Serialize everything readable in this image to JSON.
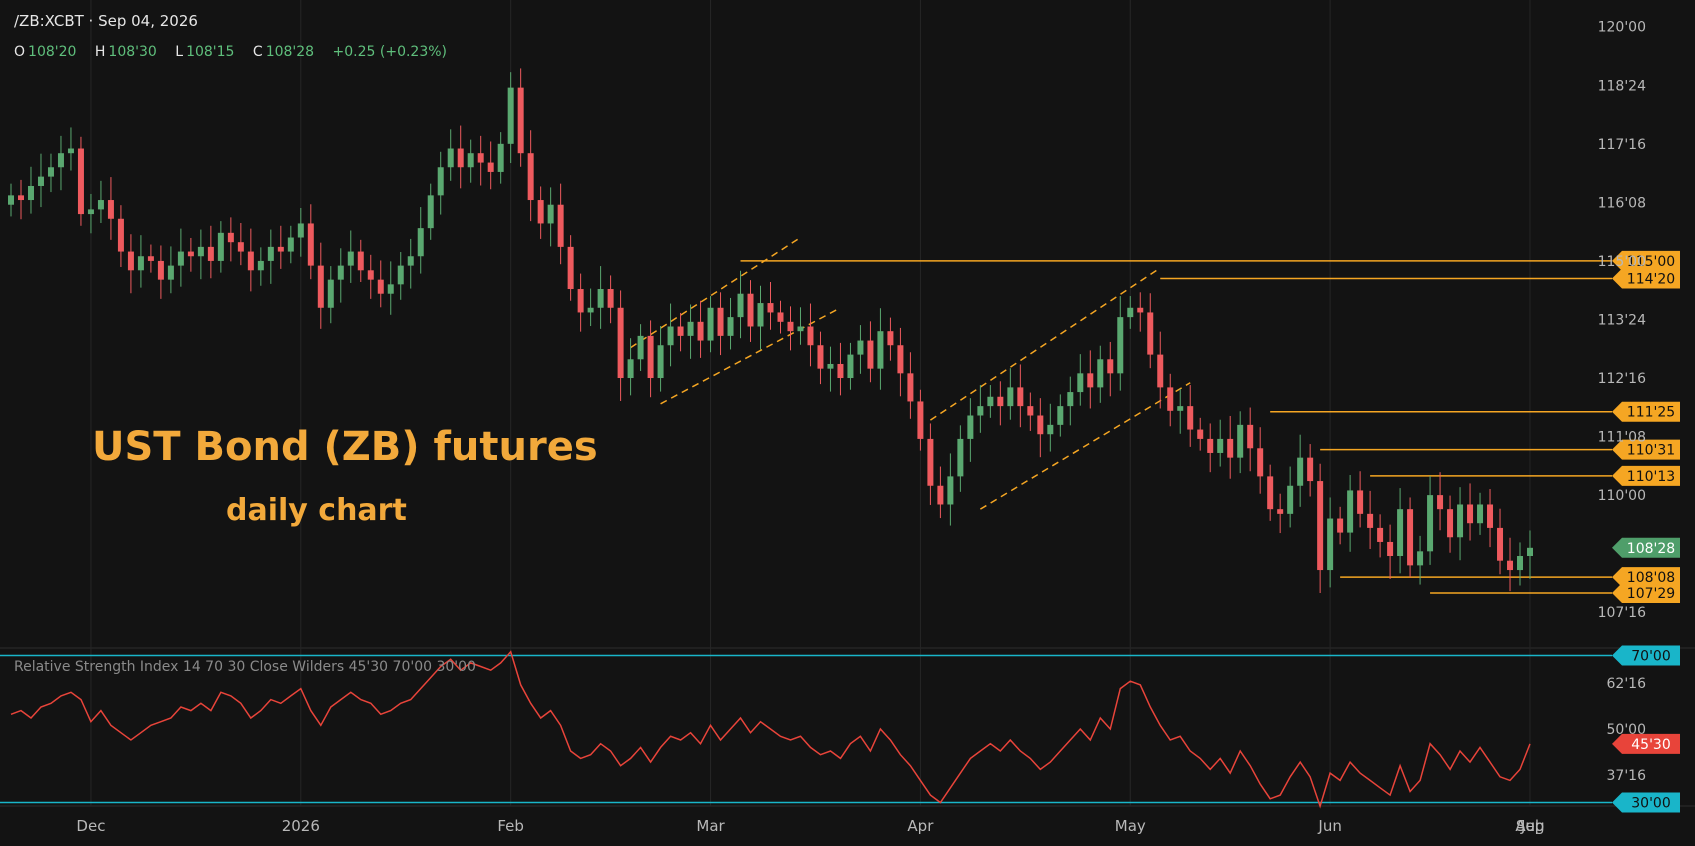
{
  "header": {
    "symbol_date": "/ZB:XCBT · Sep 04, 2026",
    "o_label": "O",
    "o": "108'20",
    "h_label": "H",
    "h": "108'30",
    "l_label": "L",
    "l": "108'15",
    "c_label": "C",
    "c": "108'28",
    "change": "+0.25 (+0.23%)"
  },
  "annotation": {
    "title": "UST Bond (ZB) futures",
    "subtitle": "daily chart"
  },
  "rsi_label": "Relative Strength Index  14  70  30  Close  Wilders  45'30  70'00  30'00",
  "colors": {
    "background": "#131313",
    "up": "#5aa870",
    "down": "#ee5a5e",
    "level": "#f5a623",
    "channel": "#f5a623",
    "rsi": "#e8443a",
    "rsi_band": "#19b5c9",
    "grid": "#262626",
    "last_price": "#4f9e6a"
  },
  "chart_data": [
    {
      "type": "candlestick",
      "title": "/ZB:XCBT",
      "x_ticks": [
        "Dec",
        "2026",
        "Feb",
        "Mar",
        "Apr",
        "May",
        "Jun",
        "Jul",
        "Aug",
        "Sep"
      ],
      "y_ticks": [
        "120'00",
        "118'24",
        "117'16",
        "116'08",
        "115'00",
        "113'24",
        "112'16",
        "111'08",
        "110'00",
        "107'16"
      ],
      "ylim": [
        106.8,
        120.4
      ],
      "horizontal_levels": [
        {
          "label": "115'00",
          "value": 115.0
        },
        {
          "label": "114'20",
          "value": 114.625
        },
        {
          "label": "111'25",
          "value": 111.78
        },
        {
          "label": "110'31",
          "value": 110.97
        },
        {
          "label": "110'13",
          "value": 110.41
        },
        {
          "label": "108'08",
          "value": 108.25
        },
        {
          "label": "107'29",
          "value": 107.91
        }
      ],
      "last_price": {
        "label": "108'28",
        "value": 108.875
      },
      "channels": [
        "Mar–Apr rising channel",
        "May–Jun rising channel"
      ],
      "closes": [
        116.4,
        116.3,
        116.6,
        116.8,
        117.0,
        117.3,
        117.4,
        116.0,
        116.1,
        116.3,
        115.9,
        115.2,
        114.8,
        115.1,
        115.0,
        114.6,
        114.9,
        115.2,
        115.1,
        115.3,
        115.0,
        115.6,
        115.4,
        115.2,
        114.8,
        115.0,
        115.3,
        115.2,
        115.5,
        115.8,
        114.9,
        114.0,
        114.6,
        114.9,
        115.2,
        114.8,
        114.6,
        114.3,
        114.5,
        114.9,
        115.1,
        115.7,
        116.4,
        117.0,
        117.4,
        117.0,
        117.3,
        117.1,
        116.9,
        117.5,
        118.7,
        117.3,
        116.3,
        115.8,
        116.2,
        115.3,
        114.4,
        113.9,
        114.0,
        114.4,
        114.0,
        112.5,
        112.9,
        113.4,
        112.5,
        113.2,
        113.6,
        113.4,
        113.7,
        113.3,
        114.0,
        113.4,
        113.8,
        114.3,
        113.6,
        114.1,
        113.9,
        113.7,
        113.5,
        113.6,
        113.2,
        112.7,
        112.8,
        112.5,
        113.0,
        113.3,
        112.7,
        113.5,
        113.2,
        112.6,
        112.0,
        111.2,
        110.2,
        109.8,
        110.4,
        111.2,
        111.7,
        111.9,
        112.1,
        111.9,
        112.3,
        111.9,
        111.7,
        111.3,
        111.5,
        111.9,
        112.2,
        112.6,
        112.3,
        112.9,
        112.6,
        113.8,
        114.0,
        113.9,
        113.0,
        112.3,
        111.8,
        111.9,
        111.4,
        111.2,
        110.9,
        111.2,
        110.8,
        111.5,
        111.0,
        110.4,
        109.7,
        109.6,
        110.2,
        110.8,
        110.3,
        108.4,
        109.5,
        109.2,
        110.1,
        109.6,
        109.3,
        109.0,
        108.7,
        109.7,
        108.5,
        108.8,
        110.0,
        109.7,
        109.1,
        109.8,
        109.4,
        109.8,
        109.3,
        108.6,
        108.4,
        108.7,
        108.875
      ]
    },
    {
      "type": "line",
      "title": "Relative Strength Index",
      "y_ticks": [
        "70'00",
        "62'16",
        "50'00",
        "45'30",
        "37'16",
        "30'00"
      ],
      "ylim": [
        28.5,
        71.5
      ],
      "bands": [
        {
          "label": "70'00",
          "value": 70
        },
        {
          "label": "30'00",
          "value": 30
        }
      ],
      "last_value": {
        "label": "45'30",
        "value": 45.94
      },
      "values": [
        54,
        55,
        53,
        56,
        57,
        59,
        60,
        58,
        52,
        55,
        51,
        49,
        47,
        49,
        51,
        52,
        53,
        56,
        55,
        57,
        55,
        60,
        59,
        57,
        53,
        55,
        58,
        57,
        59,
        61,
        55,
        51,
        56,
        58,
        60,
        58,
        57,
        54,
        55,
        57,
        58,
        61,
        64,
        67,
        69,
        66,
        68,
        67,
        66,
        68,
        71,
        62,
        57,
        53,
        55,
        51,
        44,
        42,
        43,
        46,
        44,
        40,
        42,
        45,
        41,
        45,
        48,
        47,
        49,
        46,
        51,
        47,
        50,
        53,
        49,
        52,
        50,
        48,
        47,
        48,
        45,
        43,
        44,
        42,
        46,
        48,
        44,
        50,
        47,
        43,
        40,
        36,
        32,
        30,
        34,
        38,
        42,
        44,
        46,
        44,
        47,
        44,
        42,
        39,
        41,
        44,
        47,
        50,
        47,
        53,
        50,
        61,
        63,
        62,
        56,
        51,
        47,
        48,
        44,
        42,
        39,
        42,
        38,
        44,
        40,
        35,
        31,
        32,
        37,
        41,
        37,
        29,
        38,
        36,
        41,
        38,
        36,
        34,
        32,
        40,
        33,
        36,
        46,
        43,
        39,
        44,
        41,
        45,
        41,
        37,
        36,
        39,
        45.94
      ]
    }
  ]
}
